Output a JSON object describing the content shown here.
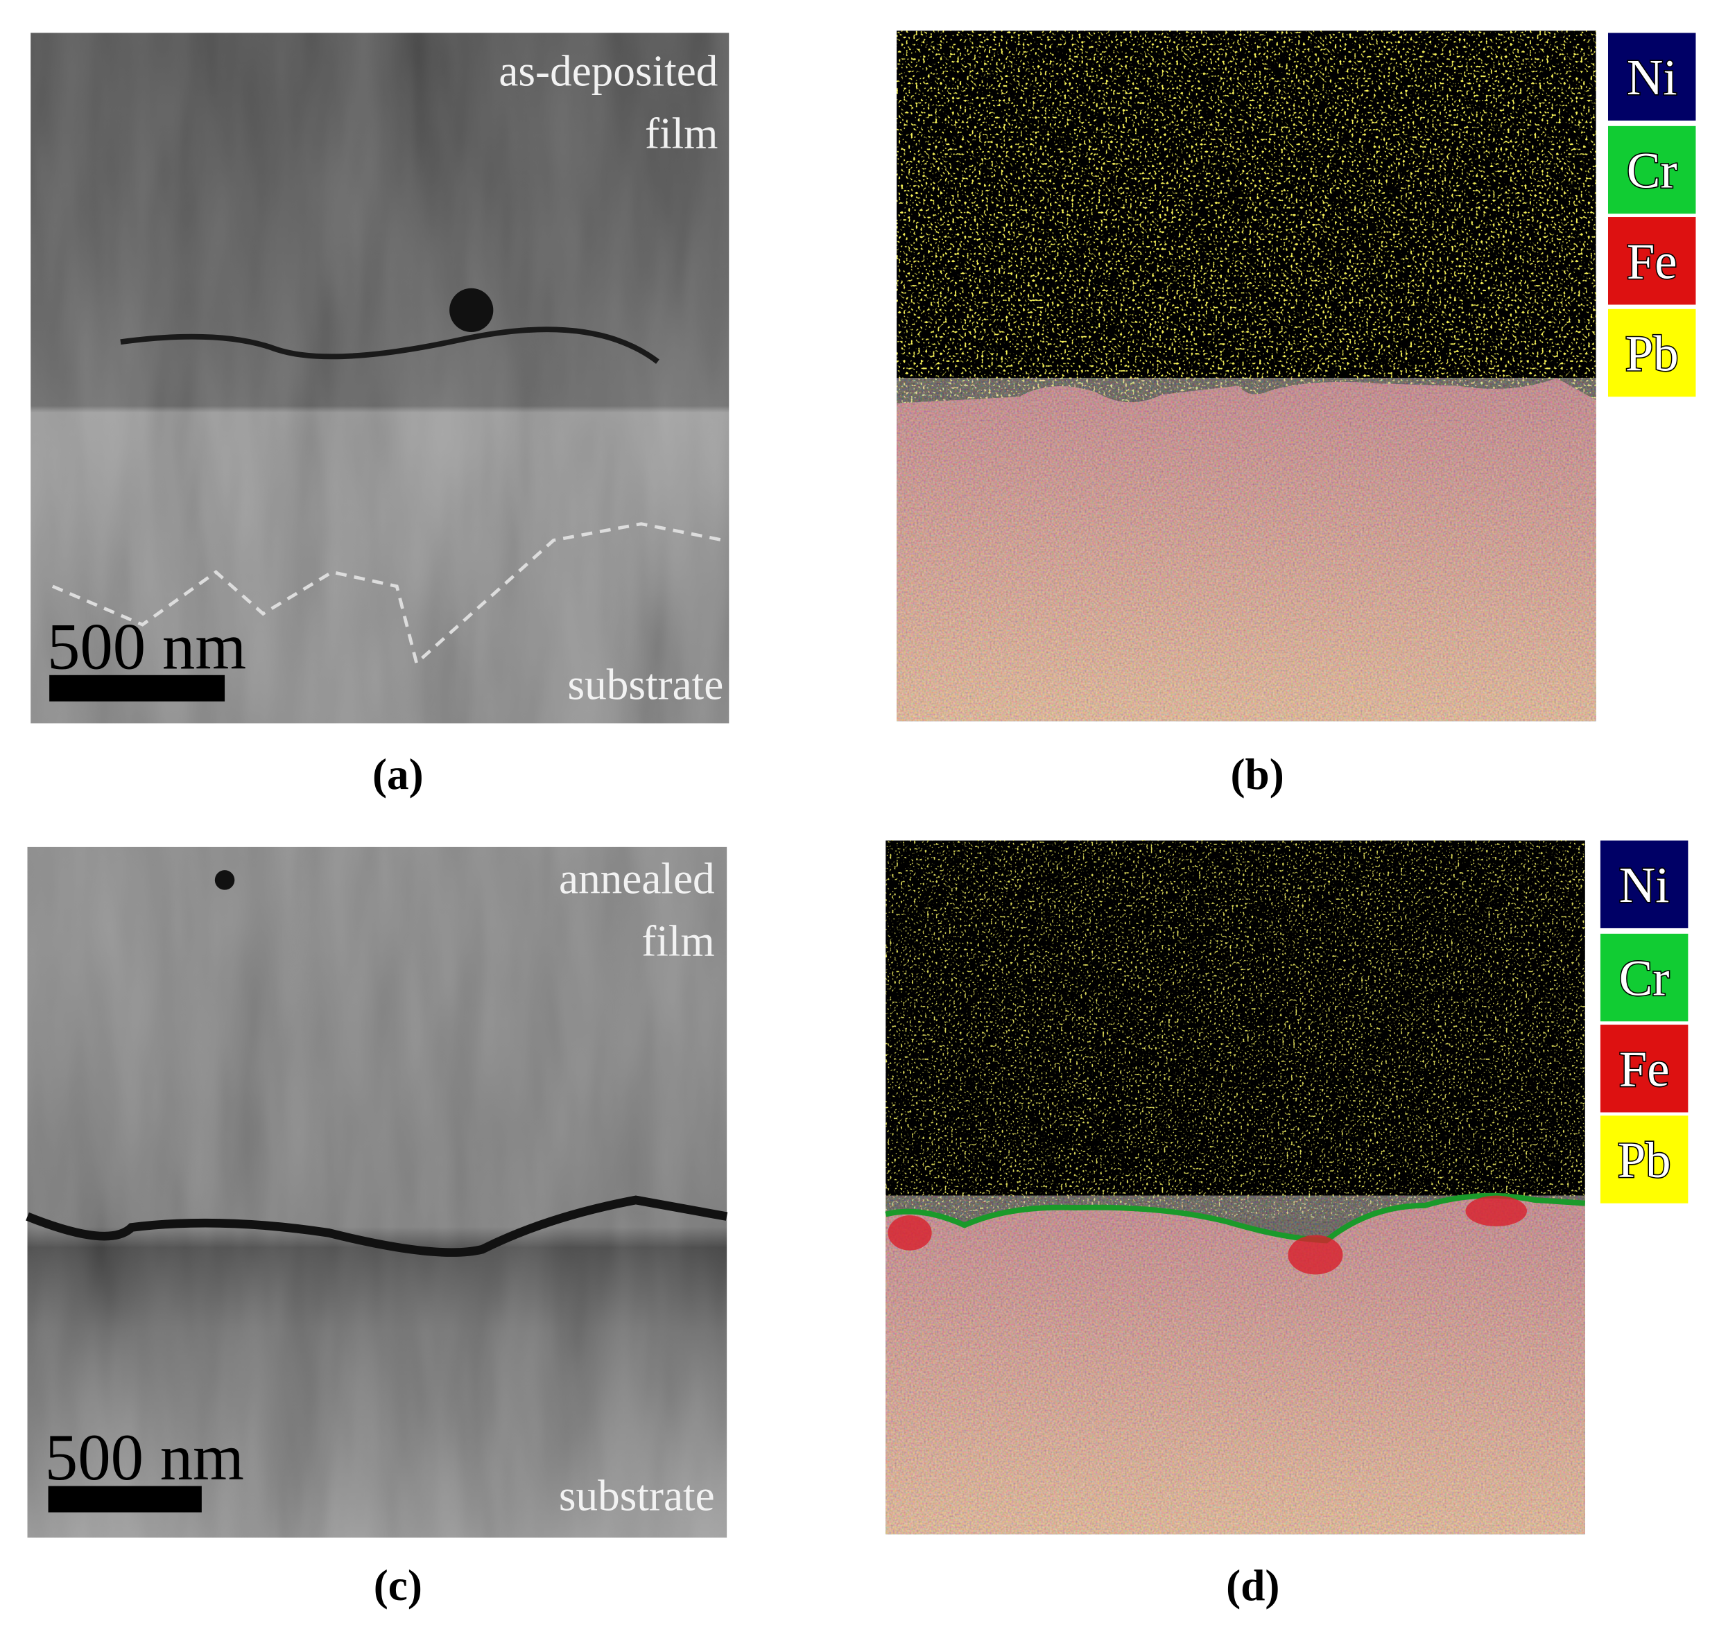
{
  "panels": [
    {
      "label": "(a)",
      "annotations": [
        "as-deposited",
        "film",
        "substrate"
      ],
      "scale_bar": "500 nm"
    },
    {
      "label": "(b)",
      "legend": [
        "Ni",
        "Cr",
        "Fe",
        "Pb"
      ]
    },
    {
      "label": "(c)",
      "annotations": [
        "annealed",
        "film",
        "substrate"
      ],
      "scale_bar": "500 nm"
    },
    {
      "label": "(d)",
      "legend": [
        "Ni",
        "Cr",
        "Fe",
        "Pb"
      ]
    }
  ]
}
